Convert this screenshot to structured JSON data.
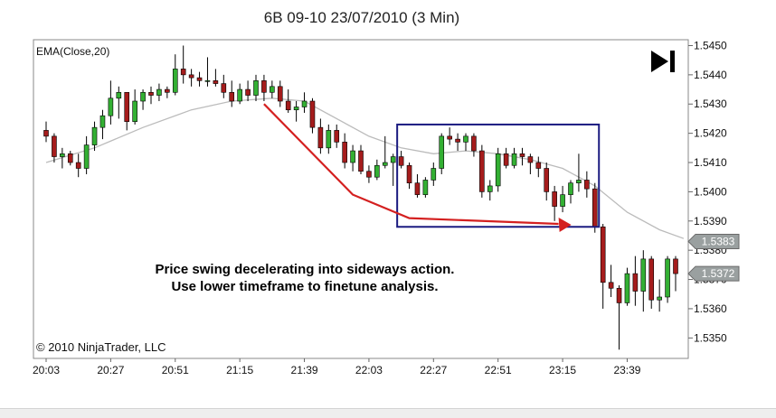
{
  "chart_data": {
    "type": "candlestick",
    "title": "6B 09-10  23/07/2010 (3 Min)",
    "indicator_label": "EMA(Close,20)",
    "copyright": "© 2010 NinjaTrader, LLC",
    "annotation_lines": [
      "Price swing decelerating into sideways action.",
      "Use lower timeframe to finetune analysis."
    ],
    "ylim": [
      1.5343,
      1.5452
    ],
    "y_ticks": [
      "1.5450",
      "1.5440",
      "1.5430",
      "1.5420",
      "1.5410",
      "1.5400",
      "1.5390",
      "1.5380",
      "1.5370",
      "1.5360",
      "1.5350"
    ],
    "x_ticks": [
      "20:03",
      "20:27",
      "20:51",
      "21:15",
      "21:39",
      "22:03",
      "22:27",
      "22:51",
      "23:15",
      "23:39"
    ],
    "price_markers": [
      {
        "label": "1.5383",
        "value": 1.5383
      },
      {
        "label": "1.5372",
        "value": 1.5372
      }
    ],
    "up_color": "#33b033",
    "down_color": "#a51c1c",
    "ema_color": "#bbbbbb",
    "box_color": "#1a1a80",
    "arrow_color": "#d42020",
    "candles": [
      {
        "o": 1.5421,
        "h": 1.5424,
        "l": 1.5417,
        "c": 1.5419
      },
      {
        "o": 1.5419,
        "h": 1.542,
        "l": 1.541,
        "c": 1.5412
      },
      {
        "o": 1.5412,
        "h": 1.5415,
        "l": 1.5408,
        "c": 1.5413
      },
      {
        "o": 1.5413,
        "h": 1.5414,
        "l": 1.5409,
        "c": 1.541
      },
      {
        "o": 1.541,
        "h": 1.5413,
        "l": 1.5405,
        "c": 1.5408
      },
      {
        "o": 1.5408,
        "h": 1.5419,
        "l": 1.5406,
        "c": 1.5416
      },
      {
        "o": 1.5416,
        "h": 1.5424,
        "l": 1.5414,
        "c": 1.5422
      },
      {
        "o": 1.5422,
        "h": 1.5428,
        "l": 1.5418,
        "c": 1.5426
      },
      {
        "o": 1.5426,
        "h": 1.5438,
        "l": 1.5423,
        "c": 1.5432
      },
      {
        "o": 1.5432,
        "h": 1.5436,
        "l": 1.5425,
        "c": 1.5434
      },
      {
        "o": 1.5434,
        "h": 1.5434,
        "l": 1.5421,
        "c": 1.5424
      },
      {
        "o": 1.5424,
        "h": 1.5435,
        "l": 1.5423,
        "c": 1.5431
      },
      {
        "o": 1.5431,
        "h": 1.5435,
        "l": 1.5428,
        "c": 1.5434
      },
      {
        "o": 1.5434,
        "h": 1.5436,
        "l": 1.543,
        "c": 1.5433
      },
      {
        "o": 1.5433,
        "h": 1.5437,
        "l": 1.5431,
        "c": 1.5435
      },
      {
        "o": 1.5435,
        "h": 1.5436,
        "l": 1.5432,
        "c": 1.5434
      },
      {
        "o": 1.5434,
        "h": 1.5447,
        "l": 1.5433,
        "c": 1.5442
      },
      {
        "o": 1.5442,
        "h": 1.545,
        "l": 1.5437,
        "c": 1.544
      },
      {
        "o": 1.544,
        "h": 1.5442,
        "l": 1.5436,
        "c": 1.5439
      },
      {
        "o": 1.5439,
        "h": 1.5441,
        "l": 1.5436,
        "c": 1.5438
      },
      {
        "o": 1.5438,
        "h": 1.5446,
        "l": 1.5436,
        "c": 1.5438
      },
      {
        "o": 1.5438,
        "h": 1.5442,
        "l": 1.5436,
        "c": 1.5437
      },
      {
        "o": 1.5437,
        "h": 1.544,
        "l": 1.5432,
        "c": 1.5434
      },
      {
        "o": 1.5434,
        "h": 1.5438,
        "l": 1.5429,
        "c": 1.5431
      },
      {
        "o": 1.5431,
        "h": 1.5437,
        "l": 1.543,
        "c": 1.5435
      },
      {
        "o": 1.5435,
        "h": 1.5438,
        "l": 1.5431,
        "c": 1.5433
      },
      {
        "o": 1.5433,
        "h": 1.544,
        "l": 1.5431,
        "c": 1.5438
      },
      {
        "o": 1.5438,
        "h": 1.544,
        "l": 1.5431,
        "c": 1.5434
      },
      {
        "o": 1.5434,
        "h": 1.5438,
        "l": 1.5432,
        "c": 1.5436
      },
      {
        "o": 1.5436,
        "h": 1.5438,
        "l": 1.5429,
        "c": 1.5431
      },
      {
        "o": 1.5431,
        "h": 1.5435,
        "l": 1.5427,
        "c": 1.5428
      },
      {
        "o": 1.5428,
        "h": 1.5431,
        "l": 1.5424,
        "c": 1.5429
      },
      {
        "o": 1.5429,
        "h": 1.5434,
        "l": 1.5427,
        "c": 1.5431
      },
      {
        "o": 1.5431,
        "h": 1.5432,
        "l": 1.542,
        "c": 1.5422
      },
      {
        "o": 1.5422,
        "h": 1.5425,
        "l": 1.5413,
        "c": 1.5415
      },
      {
        "o": 1.5415,
        "h": 1.5423,
        "l": 1.5413,
        "c": 1.5421
      },
      {
        "o": 1.5421,
        "h": 1.5423,
        "l": 1.5415,
        "c": 1.5417
      },
      {
        "o": 1.5417,
        "h": 1.542,
        "l": 1.5408,
        "c": 1.541
      },
      {
        "o": 1.541,
        "h": 1.5416,
        "l": 1.5407,
        "c": 1.5414
      },
      {
        "o": 1.5414,
        "h": 1.5416,
        "l": 1.5406,
        "c": 1.5407
      },
      {
        "o": 1.5407,
        "h": 1.5409,
        "l": 1.5403,
        "c": 1.5405
      },
      {
        "o": 1.5405,
        "h": 1.5411,
        "l": 1.5404,
        "c": 1.5409
      },
      {
        "o": 1.5409,
        "h": 1.5419,
        "l": 1.5408,
        "c": 1.541
      },
      {
        "o": 1.541,
        "h": 1.5413,
        "l": 1.5402,
        "c": 1.5412
      },
      {
        "o": 1.5412,
        "h": 1.5414,
        "l": 1.5408,
        "c": 1.5409
      },
      {
        "o": 1.5409,
        "h": 1.541,
        "l": 1.5401,
        "c": 1.5403
      },
      {
        "o": 1.5403,
        "h": 1.5406,
        "l": 1.5398,
        "c": 1.5399
      },
      {
        "o": 1.5399,
        "h": 1.5405,
        "l": 1.5398,
        "c": 1.5404
      },
      {
        "o": 1.5404,
        "h": 1.541,
        "l": 1.5402,
        "c": 1.5408
      },
      {
        "o": 1.5408,
        "h": 1.542,
        "l": 1.5406,
        "c": 1.5419
      },
      {
        "o": 1.5419,
        "h": 1.5422,
        "l": 1.5416,
        "c": 1.5418
      },
      {
        "o": 1.5418,
        "h": 1.542,
        "l": 1.5414,
        "c": 1.5417
      },
      {
        "o": 1.5417,
        "h": 1.542,
        "l": 1.5414,
        "c": 1.5419
      },
      {
        "o": 1.5419,
        "h": 1.542,
        "l": 1.5412,
        "c": 1.5414
      },
      {
        "o": 1.5414,
        "h": 1.5416,
        "l": 1.5398,
        "c": 1.54
      },
      {
        "o": 1.54,
        "h": 1.5404,
        "l": 1.5397,
        "c": 1.5402
      },
      {
        "o": 1.5402,
        "h": 1.5415,
        "l": 1.54,
        "c": 1.5413
      },
      {
        "o": 1.5413,
        "h": 1.5415,
        "l": 1.5408,
        "c": 1.5409
      },
      {
        "o": 1.5409,
        "h": 1.5415,
        "l": 1.5408,
        "c": 1.5413
      },
      {
        "o": 1.5413,
        "h": 1.5415,
        "l": 1.5409,
        "c": 1.5412
      },
      {
        "o": 1.5412,
        "h": 1.5413,
        "l": 1.5406,
        "c": 1.541
      },
      {
        "o": 1.541,
        "h": 1.5412,
        "l": 1.5405,
        "c": 1.5408
      },
      {
        "o": 1.5408,
        "h": 1.541,
        "l": 1.5397,
        "c": 1.54
      },
      {
        "o": 1.54,
        "h": 1.5402,
        "l": 1.539,
        "c": 1.5395
      },
      {
        "o": 1.5395,
        "h": 1.5402,
        "l": 1.5393,
        "c": 1.5399
      },
      {
        "o": 1.5399,
        "h": 1.5404,
        "l": 1.5396,
        "c": 1.5403
      },
      {
        "o": 1.5403,
        "h": 1.5413,
        "l": 1.54,
        "c": 1.5404
      },
      {
        "o": 1.5404,
        "h": 1.5407,
        "l": 1.5398,
        "c": 1.5401
      },
      {
        "o": 1.5401,
        "h": 1.5403,
        "l": 1.5386,
        "c": 1.5388
      },
      {
        "o": 1.5388,
        "h": 1.5389,
        "l": 1.536,
        "c": 1.5369
      },
      {
        "o": 1.5369,
        "h": 1.5375,
        "l": 1.5364,
        "c": 1.5367
      },
      {
        "o": 1.5367,
        "h": 1.5368,
        "l": 1.5346,
        "c": 1.5362
      },
      {
        "o": 1.5362,
        "h": 1.5374,
        "l": 1.5361,
        "c": 1.5372
      },
      {
        "o": 1.5372,
        "h": 1.5378,
        "l": 1.5361,
        "c": 1.5366
      },
      {
        "o": 1.5366,
        "h": 1.538,
        "l": 1.5359,
        "c": 1.5377
      },
      {
        "o": 1.5377,
        "h": 1.5378,
        "l": 1.536,
        "c": 1.5363
      },
      {
        "o": 1.5363,
        "h": 1.537,
        "l": 1.5359,
        "c": 1.5364
      },
      {
        "o": 1.5364,
        "h": 1.5378,
        "l": 1.5362,
        "c": 1.5377
      },
      {
        "o": 1.5377,
        "h": 1.5378,
        "l": 1.5366,
        "c": 1.5372
      }
    ],
    "ema": [
      [
        0,
        1.541
      ],
      [
        6,
        1.5415
      ],
      [
        12,
        1.5422
      ],
      [
        18,
        1.5428
      ],
      [
        23,
        1.5431
      ],
      [
        28,
        1.5432
      ],
      [
        32,
        1.5431
      ],
      [
        36,
        1.5425
      ],
      [
        40,
        1.5419
      ],
      [
        44,
        1.5415
      ],
      [
        48,
        1.5413
      ],
      [
        52,
        1.5414
      ],
      [
        56,
        1.5413
      ],
      [
        60,
        1.5411
      ],
      [
        64,
        1.5408
      ],
      [
        68,
        1.5402
      ],
      [
        72,
        1.5393
      ],
      [
        76,
        1.5387
      ],
      [
        79,
        1.5384
      ]
    ],
    "box": {
      "i0": 43.5,
      "i1": 68.5,
      "top": 1.5423,
      "bottom": 1.5388
    },
    "arrow": [
      [
        27,
        1.543
      ],
      [
        38,
        1.5399
      ],
      [
        45,
        1.5391
      ],
      [
        63.5,
        1.5389
      ]
    ]
  }
}
